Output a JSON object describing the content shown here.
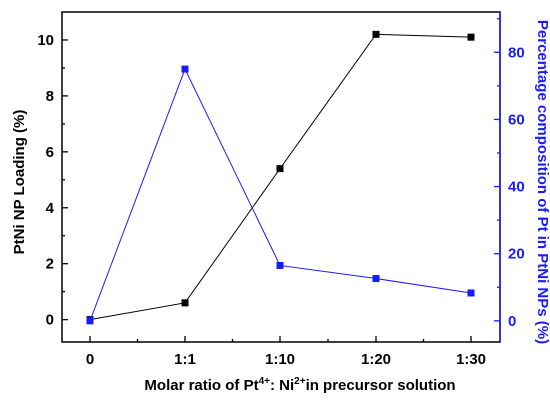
{
  "chart_data": {
    "type": "line",
    "xlabel": {
      "main": "Molar ratio of Pt",
      "sup1": "4+",
      "mid": ": Ni",
      "sup2": "2+",
      "rest": "in precursor solution"
    },
    "categories": [
      "0",
      "1:1",
      "1:10",
      "1:20",
      "1:30"
    ],
    "left_axis": {
      "label": "PtNi NP Loading (%)",
      "ylim": [
        -0.8,
        11
      ],
      "ticks": [
        "0",
        "2",
        "4",
        "6",
        "8",
        "10"
      ],
      "color": "#000000"
    },
    "right_axis": {
      "label": "Percentage composition of Pt in PtNi NPs (%)",
      "ylim": [
        -6.3,
        92
      ],
      "ticks": [
        "0",
        "20",
        "40",
        "60",
        "80"
      ],
      "color": "#1a1aff"
    },
    "series": [
      {
        "axis": "left",
        "values": [
          0.0,
          0.6,
          5.4,
          10.2,
          10.1
        ],
        "color": "#000000",
        "marker": "square",
        "grid": false
      },
      {
        "axis": "right",
        "values": [
          0,
          75,
          16.5,
          12.6,
          8.3
        ],
        "color": "#1a1aff",
        "marker": "square",
        "grid": false
      }
    ],
    "grid": false,
    "legend": "none"
  }
}
